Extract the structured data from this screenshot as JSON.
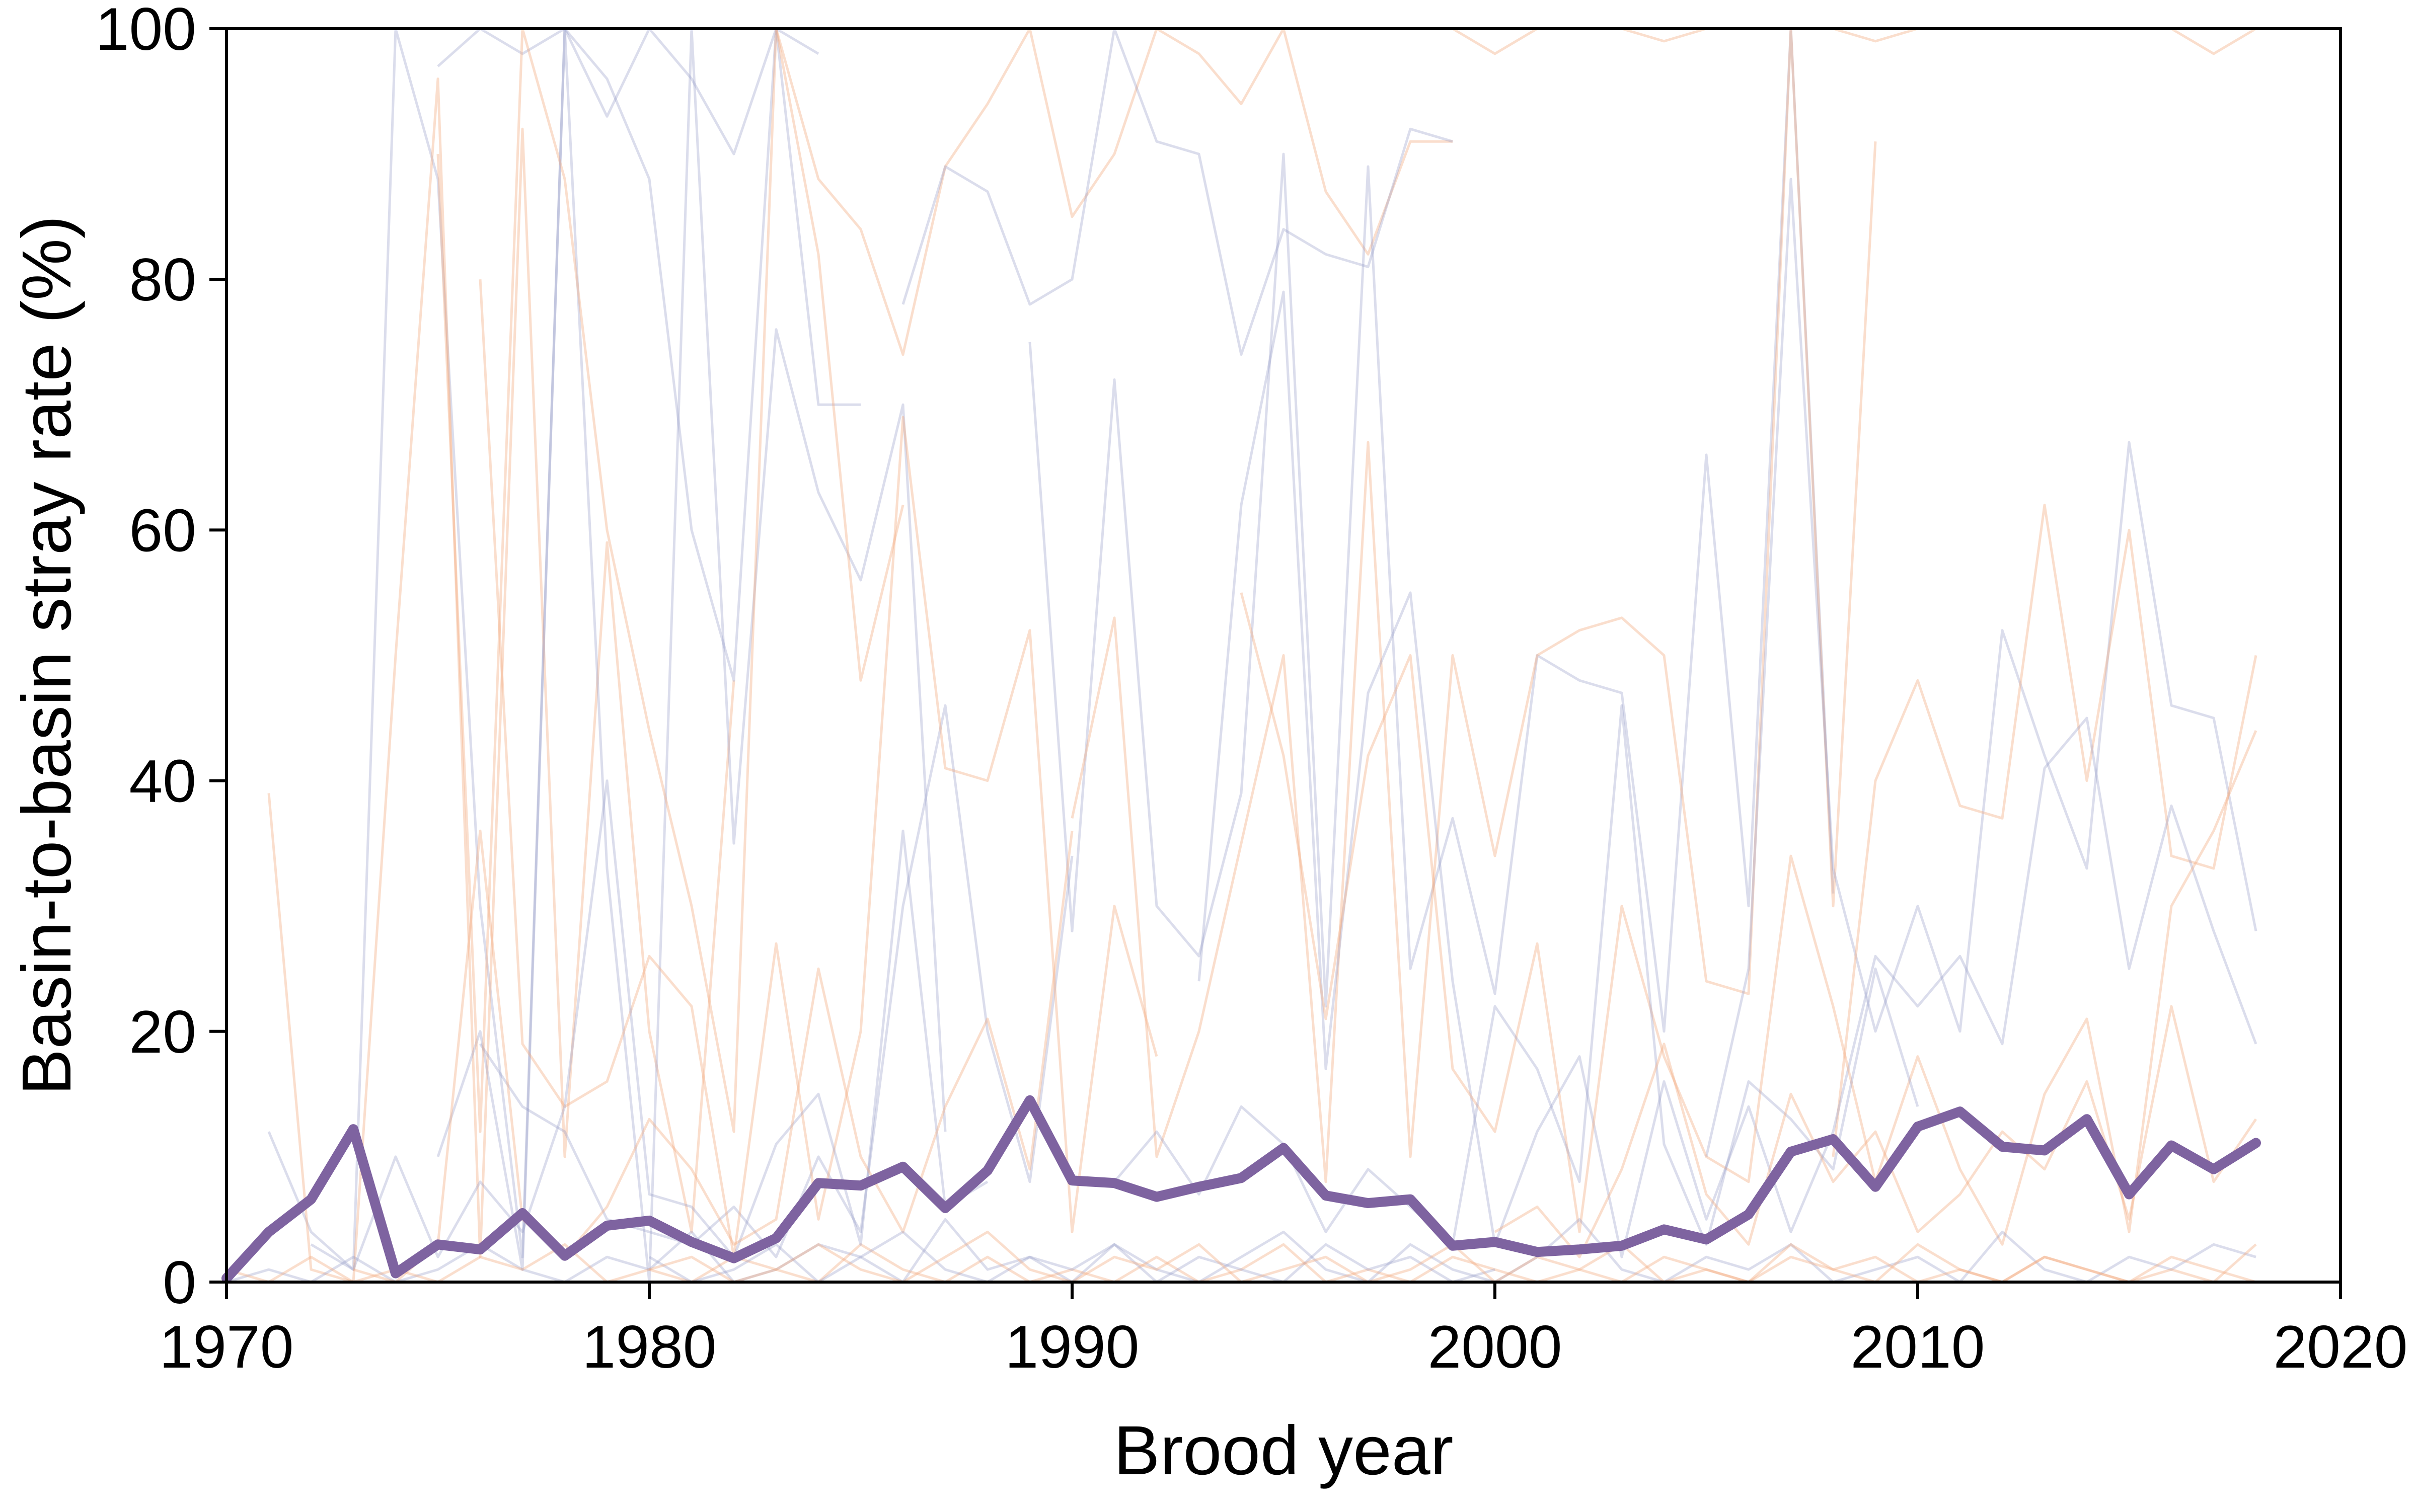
{
  "chart_data": {
    "type": "line",
    "title": "",
    "xlabel": "Brood year",
    "ylabel": "Basin-to-basin stray rate (%)",
    "xlim": [
      1970,
      2020
    ],
    "ylim": [
      0,
      100
    ],
    "x_ticks": [
      "1970",
      "1980",
      "1990",
      "2000",
      "2010",
      "2020"
    ],
    "y_ticks": [
      "0",
      "20",
      "40",
      "60",
      "80",
      "100"
    ],
    "grid": false,
    "legend": "none",
    "colors": {
      "mean": "#7e63a0",
      "background_a": "#8f96c4",
      "background_b": "#f2a97c",
      "axis": "#000000"
    },
    "background_series_note_count": 60,
    "series": [
      {
        "role": "mean",
        "x": [
          1970,
          1971,
          1972,
          1973,
          1974,
          1975,
          1976,
          1977,
          1978,
          1979,
          1980,
          1981,
          1982,
          1983,
          1984,
          1985,
          1986,
          1987,
          1988,
          1989,
          1990,
          1991,
          1992,
          1993,
          1994,
          1995,
          1996,
          1997,
          1998,
          1999,
          2000,
          2001,
          2002,
          2003,
          2004,
          2005,
          2006,
          2007,
          2008,
          2009,
          2010,
          2011,
          2012,
          2013,
          2014,
          2015,
          2016,
          2017,
          2018
        ],
        "values": [
          0.3,
          4.0,
          6.6,
          12.2,
          0.7,
          3.0,
          2.6,
          5.5,
          2.1,
          4.5,
          4.9,
          3.2,
          1.9,
          3.5,
          7.9,
          7.7,
          9.2,
          5.9,
          8.9,
          14.5,
          8.1,
          7.9,
          6.8,
          7.6,
          8.3,
          10.7,
          6.9,
          6.3,
          6.6,
          2.9,
          3.2,
          2.4,
          2.6,
          2.9,
          4.2,
          3.4,
          5.4,
          10.4,
          11.4,
          7.6,
          12.4,
          13.6,
          10.8,
          10.5,
          13.0,
          7.0,
          10.9,
          9.0,
          11.1
        ]
      },
      {
        "role": "background",
        "color": "a",
        "x": [
          1971,
          1972,
          1973,
          1974,
          1975,
          1976,
          1977,
          1978,
          1979,
          1980,
          1981,
          1982,
          1983,
          1984,
          1985
        ],
        "values": [
          12,
          4,
          1,
          100,
          88,
          30,
          2,
          100,
          93,
          100,
          96,
          90,
          100,
          70,
          70
        ]
      },
      {
        "role": "background",
        "color": "b",
        "x": [
          1971,
          1972,
          1973,
          1974,
          1975,
          1976,
          1977,
          1978,
          1979,
          1980,
          1981,
          1982
        ],
        "values": [
          39,
          1,
          0,
          50,
          96,
          2,
          92,
          10,
          59,
          20,
          4,
          48
        ]
      },
      {
        "role": "background",
        "color": "a",
        "x": [
          1975,
          1976,
          1977,
          1978,
          1979,
          1980,
          1981,
          1982,
          1983,
          1984,
          1985,
          1986,
          1987
        ],
        "values": [
          10,
          20,
          1,
          100,
          33,
          0,
          100,
          35,
          76,
          63,
          56,
          70,
          12
        ]
      },
      {
        "role": "background",
        "color": "b",
        "x": [
          1983,
          1984,
          1985,
          1986,
          1987,
          1988,
          1989,
          1990,
          1991,
          1992,
          1993,
          1994,
          1995,
          1996,
          1997,
          1998,
          1999
        ],
        "values": [
          100,
          88,
          84,
          74,
          89,
          94,
          100,
          85,
          90,
          100,
          98,
          94,
          100,
          87,
          82,
          91,
          91
        ]
      },
      {
        "role": "background",
        "color": "a",
        "x": [
          1986,
          1987,
          1988,
          1989,
          1990,
          1991,
          1992,
          1993,
          1994,
          1995,
          1996,
          1997,
          1998,
          1999
        ],
        "values": [
          78,
          89,
          87,
          78,
          80,
          100,
          91,
          90,
          74,
          84,
          82,
          81,
          92,
          91
        ]
      },
      {
        "role": "background",
        "color": "b",
        "x": [
          1999,
          2000,
          2001,
          2002,
          2003,
          2004,
          2005,
          2006,
          2007,
          2008,
          2009,
          2010,
          2011,
          2012,
          2013,
          2014,
          2015,
          2016,
          2017,
          2018
        ],
        "values": [
          100,
          98,
          100,
          100,
          100,
          99,
          100,
          100,
          100,
          100,
          99,
          100,
          100,
          100,
          100,
          100,
          100,
          100,
          98,
          100
        ]
      },
      {
        "role": "background",
        "color": "a",
        "x": [
          1989,
          1990,
          1991,
          1992,
          1993,
          1994,
          1995,
          1996,
          1997,
          1998,
          1999,
          2000,
          2001,
          2002,
          2003,
          2004,
          2005,
          2006,
          2007,
          2008
        ],
        "values": [
          75,
          28,
          72,
          30,
          26,
          39,
          90,
          22,
          89,
          25,
          37,
          23,
          50,
          48,
          47,
          20,
          66,
          30,
          100,
          31
        ]
      },
      {
        "role": "background",
        "color": "b",
        "x": [
          1990,
          1991,
          1992,
          1993,
          1994,
          1995,
          1996,
          1997,
          1998,
          1999,
          2000,
          2001,
          2002,
          2003,
          2004,
          2005,
          2006,
          2007,
          2008,
          2009
        ],
        "values": [
          37,
          53,
          10,
          20,
          35,
          50,
          8,
          67,
          10,
          50,
          34,
          50,
          52,
          53,
          50,
          24,
          23,
          100,
          30,
          91
        ]
      },
      {
        "role": "background",
        "color": "a",
        "x": [
          2005,
          2006,
          2007,
          2008,
          2009,
          2010,
          2011,
          2012,
          2013,
          2014,
          2015,
          2016,
          2017,
          2018
        ],
        "values": [
          10,
          25,
          88,
          33,
          20,
          30,
          20,
          52,
          42,
          33,
          67,
          46,
          45,
          28
        ]
      },
      {
        "role": "background",
        "color": "b",
        "x": [
          2008,
          2009,
          2010,
          2011,
          2012,
          2013,
          2014,
          2015,
          2016,
          2017,
          2018
        ],
        "values": [
          10,
          40,
          48,
          38,
          37,
          62,
          40,
          60,
          34,
          33,
          50
        ]
      },
      {
        "role": "background",
        "color": "a",
        "x": [
          1976,
          1977,
          1978,
          1979,
          1980,
          1981,
          1982,
          1983,
          1984,
          1985,
          1986,
          1987,
          1988,
          1989,
          1990
        ],
        "values": [
          19,
          14,
          12,
          5,
          4,
          3,
          6,
          2,
          10,
          4,
          30,
          46,
          20,
          8,
          34
        ]
      },
      {
        "role": "background",
        "color": "b",
        "x": [
          1976,
          1977,
          1978,
          1979,
          1980,
          1981,
          1982,
          1983,
          1984,
          1985,
          1986,
          1987,
          1988,
          1989,
          1990,
          1991,
          1992
        ],
        "values": [
          80,
          19,
          14,
          16,
          26,
          22,
          2,
          27,
          5,
          20,
          69,
          41,
          40,
          52,
          4,
          30,
          18
        ]
      },
      {
        "role": "background",
        "color": "a",
        "x": [
          1993,
          1994,
          1995,
          1996,
          1997,
          1998,
          1999,
          2000,
          2001,
          2002,
          2003,
          2004,
          2005,
          2006,
          2007,
          2008,
          2009,
          2010,
          2011,
          2012,
          2013,
          2014,
          2015,
          2016,
          2017,
          2018
        ],
        "values": [
          24,
          62,
          79,
          17,
          47,
          55,
          24,
          3,
          12,
          18,
          2,
          16,
          5,
          14,
          4,
          12,
          26,
          22,
          26,
          19,
          41,
          45,
          25,
          38,
          28,
          19
        ]
      },
      {
        "role": "background",
        "color": "b",
        "x": [
          1994,
          1995,
          1996,
          1997,
          1998,
          1999,
          2000,
          2001,
          2002,
          2003,
          2004,
          2005,
          2006,
          2007,
          2008,
          2009,
          2010,
          2011,
          2012,
          2013,
          2014,
          2015,
          2016,
          2017,
          2018
        ],
        "values": [
          55,
          42,
          21,
          42,
          50,
          17,
          12,
          27,
          4,
          30,
          18,
          10,
          8,
          34,
          22,
          8,
          18,
          9,
          3,
          15,
          21,
          4,
          30,
          36,
          44
        ]
      },
      {
        "role": "background",
        "color": "a",
        "x": [
          1970,
          1971,
          1972,
          1973,
          1974,
          1975,
          1976,
          1977,
          1978,
          1979,
          1980,
          1981,
          1982,
          1983,
          1984,
          1985,
          1986,
          1987,
          1988,
          1989,
          1990,
          1991,
          1992,
          1993,
          1994,
          1995,
          1996,
          1997,
          1998,
          1999,
          2000,
          2001,
          2002,
          2003,
          2004,
          2005,
          2006,
          2007,
          2008,
          2009,
          2010,
          2011,
          2012,
          2013,
          2014,
          2015,
          2016,
          2017,
          2018
        ],
        "values": [
          0,
          1,
          0,
          2,
          0,
          1,
          3,
          1,
          0,
          2,
          1,
          4,
          0,
          1,
          3,
          2,
          0,
          5,
          1,
          2,
          0,
          3,
          1,
          0,
          2,
          4,
          1,
          0,
          3,
          1,
          0,
          2,
          5,
          1,
          0,
          2,
          1,
          3,
          0,
          1,
          2,
          0,
          4,
          1,
          0,
          2,
          1,
          3,
          2
        ]
      },
      {
        "role": "background",
        "color": "b",
        "x": [
          1970,
          1971,
          1972,
          1973,
          1974,
          1975,
          1976,
          1977,
          1978,
          1979,
          1980,
          1981,
          1982,
          1983,
          1984,
          1985,
          1986,
          1987,
          1988,
          1989,
          1990,
          1991,
          1992,
          1993,
          1994,
          1995,
          1996,
          1997,
          1998,
          1999,
          2000,
          2001,
          2002,
          2003,
          2004,
          2005,
          2006,
          2007,
          2008,
          2009,
          2010,
          2011,
          2012,
          2013,
          2014,
          2015,
          2016,
          2017,
          2018
        ],
        "values": [
          1,
          0,
          2,
          0,
          1,
          0,
          2,
          1,
          3,
          0,
          1,
          0,
          2,
          1,
          0,
          3,
          1,
          0,
          2,
          0,
          1,
          0,
          2,
          0,
          1,
          3,
          0,
          1,
          0,
          2,
          1,
          0,
          1,
          3,
          0,
          1,
          0,
          2,
          1,
          0,
          3,
          1,
          0,
          2,
          1,
          0,
          1,
          0,
          3
        ]
      },
      {
        "role": "background",
        "color": "a",
        "x": [
          1972,
          1973,
          1974,
          1975,
          1976,
          1977,
          1978,
          1979,
          1980,
          1981,
          1982,
          1983,
          1984,
          1985,
          1986,
          1987,
          1988
        ],
        "values": [
          3,
          1,
          10,
          2,
          8,
          4,
          14,
          40,
          7,
          6,
          2,
          11,
          15,
          3,
          36,
          6,
          8
        ]
      },
      {
        "role": "background",
        "color": "b",
        "x": [
          1973,
          1974,
          1975,
          1976,
          1977,
          1978,
          1979,
          1980,
          1981,
          1982,
          1983,
          1984,
          1985,
          1986,
          1987,
          1988,
          1989,
          1990
        ],
        "values": [
          1,
          0,
          3,
          36,
          5,
          2,
          6,
          13,
          9,
          3,
          5,
          25,
          10,
          4,
          14,
          21,
          9,
          36
        ]
      },
      {
        "role": "background",
        "color": "a",
        "x": [
          1991,
          1992,
          1993,
          1994,
          1995,
          1996,
          1997,
          1998,
          1999,
          2000,
          2001,
          2002,
          2003,
          2004,
          2005,
          2006,
          2007,
          2008,
          2009,
          2010
        ],
        "values": [
          8,
          12,
          7,
          14,
          11,
          4,
          9,
          6,
          3,
          22,
          17,
          8,
          46,
          11,
          3,
          16,
          13,
          9,
          25,
          14
        ]
      },
      {
        "role": "background",
        "color": "b",
        "x": [
          2000,
          2001,
          2002,
          2003,
          2004,
          2005,
          2006,
          2007,
          2008,
          2009,
          2010,
          2011,
          2012,
          2013,
          2014,
          2015,
          2016,
          2017,
          2018
        ],
        "values": [
          4,
          6,
          2,
          9,
          19,
          7,
          3,
          15,
          8,
          12,
          4,
          7,
          12,
          9,
          16,
          5,
          22,
          8,
          13
        ]
      },
      {
        "role": "background",
        "color": "a",
        "x": [
          1980,
          1981,
          1982,
          1983,
          1984,
          1985,
          1986,
          1987,
          1988,
          1989,
          1990,
          1991,
          1992,
          1993,
          1994,
          1995,
          1996,
          1997,
          1998,
          1999,
          2000
        ],
        "values": [
          2,
          0,
          1,
          3,
          0,
          2,
          4,
          1,
          0,
          2,
          1,
          3,
          0,
          2,
          1,
          0,
          3,
          1,
          2,
          0,
          1
        ]
      },
      {
        "role": "background",
        "color": "b",
        "x": [
          1980,
          1981,
          1982,
          1983,
          1984,
          1985,
          1986,
          1987,
          1988,
          1989,
          1990,
          1991,
          1992,
          1993,
          1994,
          1995,
          1996,
          1997,
          1998,
          1999,
          2000,
          2001,
          2002,
          2003,
          2004,
          2005,
          2006,
          2007,
          2008,
          2009,
          2010,
          2011,
          2012,
          2013,
          2014,
          2015,
          2016,
          2017,
          2018
        ],
        "values": [
          1,
          2,
          0,
          1,
          3,
          1,
          0,
          2,
          4,
          1,
          0,
          2,
          1,
          3,
          0,
          1,
          2,
          0,
          1,
          3,
          0,
          2,
          1,
          0,
          2,
          1,
          0,
          3,
          1,
          2,
          0,
          1,
          0,
          2,
          1,
          0,
          2,
          1,
          0
        ]
      },
      {
        "role": "background",
        "color": "a",
        "x": [
          1975,
          1976,
          1977,
          1978,
          1979,
          1980,
          1981,
          1982,
          1983,
          1984
        ],
        "values": [
          97,
          100,
          98,
          100,
          96,
          88,
          60,
          48,
          100,
          98
        ]
      },
      {
        "role": "background",
        "color": "b",
        "x": [
          1975,
          1976,
          1977,
          1978,
          1979,
          1980,
          1981,
          1982,
          1983,
          1984,
          1985,
          1986
        ],
        "values": [
          90,
          12,
          100,
          88,
          60,
          44,
          30,
          12,
          100,
          82,
          48,
          62
        ]
      }
    ]
  }
}
